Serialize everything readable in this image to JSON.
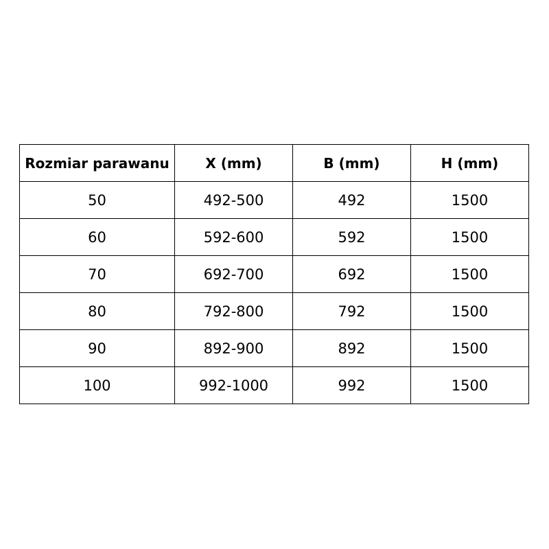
{
  "table": {
    "headers": [
      "Rozmiar parawanu",
      "X (mm)",
      "B (mm)",
      "H (mm)"
    ],
    "rows": [
      [
        "50",
        "492-500",
        "492",
        "1500"
      ],
      [
        "60",
        "592-600",
        "592",
        "1500"
      ],
      [
        "70",
        "692-700",
        "692",
        "1500"
      ],
      [
        "80",
        "792-800",
        "792",
        "1500"
      ],
      [
        "90",
        "892-900",
        "892",
        "1500"
      ],
      [
        "100",
        "992-1000",
        "992",
        "1500"
      ]
    ]
  }
}
